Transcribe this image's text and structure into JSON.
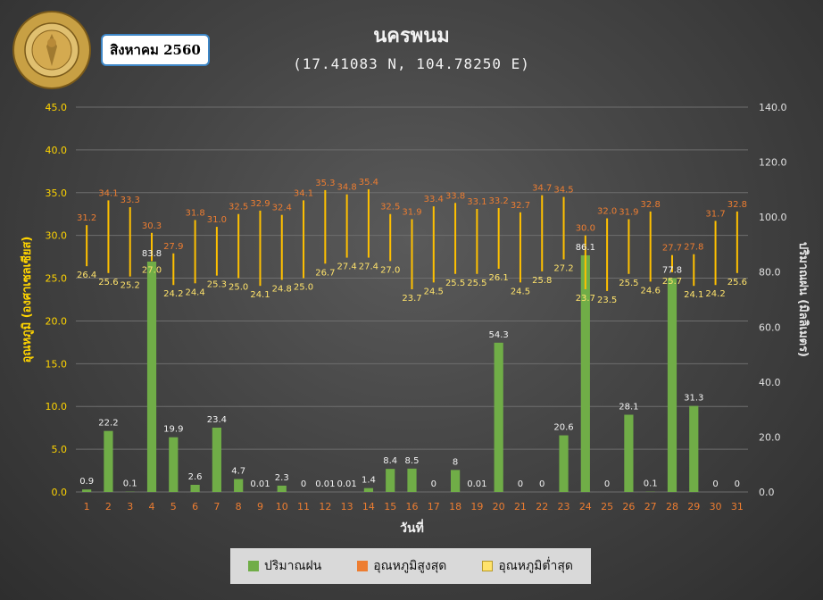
{
  "header": {
    "title": "นครพนม",
    "coords": "(17.41083 N, 104.78250 E)",
    "date": "สิงหาคม 2560",
    "logo_text": "กรมอุตุนิยมวิทยา METEOROLOGICAL DEPARTMENT"
  },
  "legend": {
    "rain": "ปริมาณฝน",
    "max": "อุณหภูมิสูงสุด",
    "min": "อุณหภูมิต่ำสุด"
  },
  "colors": {
    "rain": "#70ad47",
    "max": "#ed7d31",
    "min": "#ffc000",
    "bar": "#ffc000"
  },
  "chart_data": {
    "type": "bar",
    "xlabel": "วันที่",
    "ylabel_left": "อุณหภูมิ (องศาเซลเซียส)",
    "ylabel_right": "ปริมาณฝน (มิลลิเมตร)",
    "ylim_left": [
      0,
      45
    ],
    "ylim_right": [
      0,
      140
    ],
    "left_ticks": [
      "0.0",
      "5.0",
      "10.0",
      "15.0",
      "20.0",
      "25.0",
      "30.0",
      "35.0",
      "40.0",
      "45.0"
    ],
    "right_ticks": [
      "0.0",
      "20.0",
      "40.0",
      "60.0",
      "80.0",
      "100.0",
      "120.0",
      "140.0"
    ],
    "categories": [
      "1",
      "2",
      "3",
      "4",
      "5",
      "6",
      "7",
      "8",
      "9",
      "10",
      "11",
      "12",
      "13",
      "14",
      "15",
      "16",
      "17",
      "18",
      "19",
      "20",
      "21",
      "22",
      "23",
      "24",
      "25",
      "26",
      "27",
      "28",
      "29",
      "30",
      "31"
    ],
    "rain": [
      0.9,
      22.2,
      0.1,
      83.8,
      19.9,
      2.6,
      23.4,
      4.7,
      0.01,
      2.3,
      0,
      0.01,
      0.01,
      1.4,
      8.4,
      8.5,
      0,
      8,
      0.01,
      54.3,
      0,
      0,
      20.6,
      86.1,
      0,
      28.1,
      0.1,
      77.8,
      31.3,
      0,
      0
    ],
    "rain_labels": [
      "0.9",
      "22.2",
      "0.1",
      "83.8",
      "19.9",
      "2.6",
      "23.4",
      "4.7",
      "0.01",
      "2.3",
      "0",
      "0.01",
      "0.01",
      "1.4",
      "8.4",
      "8.5",
      "0",
      "8",
      "0.01",
      "54.3",
      "0",
      "0",
      "20.6",
      "86.1",
      "0",
      "28.1",
      "0.1",
      "77.8",
      "31.3",
      "0",
      "0"
    ],
    "tmax": [
      31.2,
      34.1,
      33.3,
      30.3,
      27.9,
      31.8,
      31.0,
      32.5,
      32.9,
      32.4,
      34.1,
      35.3,
      34.8,
      35.4,
      32.5,
      31.9,
      33.4,
      33.8,
      33.1,
      33.2,
      32.7,
      34.7,
      34.5,
      30.0,
      32.0,
      31.9,
      32.8,
      27.7,
      27.8,
      31.7,
      32.8
    ],
    "tmax_labels": [
      "31.2",
      "34.1",
      "33.3",
      "30.3",
      "27.9",
      "31.8",
      "31.0",
      "32.5",
      "32.9",
      "32.4",
      "34.1",
      "35.3",
      "34.8",
      "35.4",
      "32.5",
      "31.9",
      "33.4",
      "33.8",
      "33.1",
      "33.2",
      "32.7",
      "34.7",
      "34.5",
      "30.0",
      "32.0",
      "31.9",
      "32.8",
      "27.7",
      "27.8",
      "31.7",
      "32.8"
    ],
    "tmin": [
      26.4,
      25.6,
      25.2,
      27.0,
      24.2,
      24.4,
      25.3,
      25.0,
      24.1,
      24.8,
      25.0,
      26.7,
      27.4,
      27.4,
      27.0,
      23.7,
      24.5,
      25.5,
      25.5,
      26.1,
      24.5,
      25.8,
      27.2,
      23.7,
      23.5,
      25.5,
      24.6,
      25.7,
      24.1,
      24.2,
      25.6
    ],
    "tmin_labels": [
      "26.4",
      "25.6",
      "25.2",
      "27.0",
      "24.2",
      "24.4",
      "25.3",
      "25.0",
      "24.1",
      "24.8",
      "25.0",
      "26.7",
      "27.4",
      "27.4",
      "27.0",
      "23.7",
      "24.5",
      "25.5",
      "25.5",
      "26.1",
      "24.5",
      "25.8",
      "27.2",
      "23.7",
      "23.5",
      "25.5",
      "24.6",
      "25.7",
      "24.1",
      "24.2",
      "25.6"
    ]
  }
}
